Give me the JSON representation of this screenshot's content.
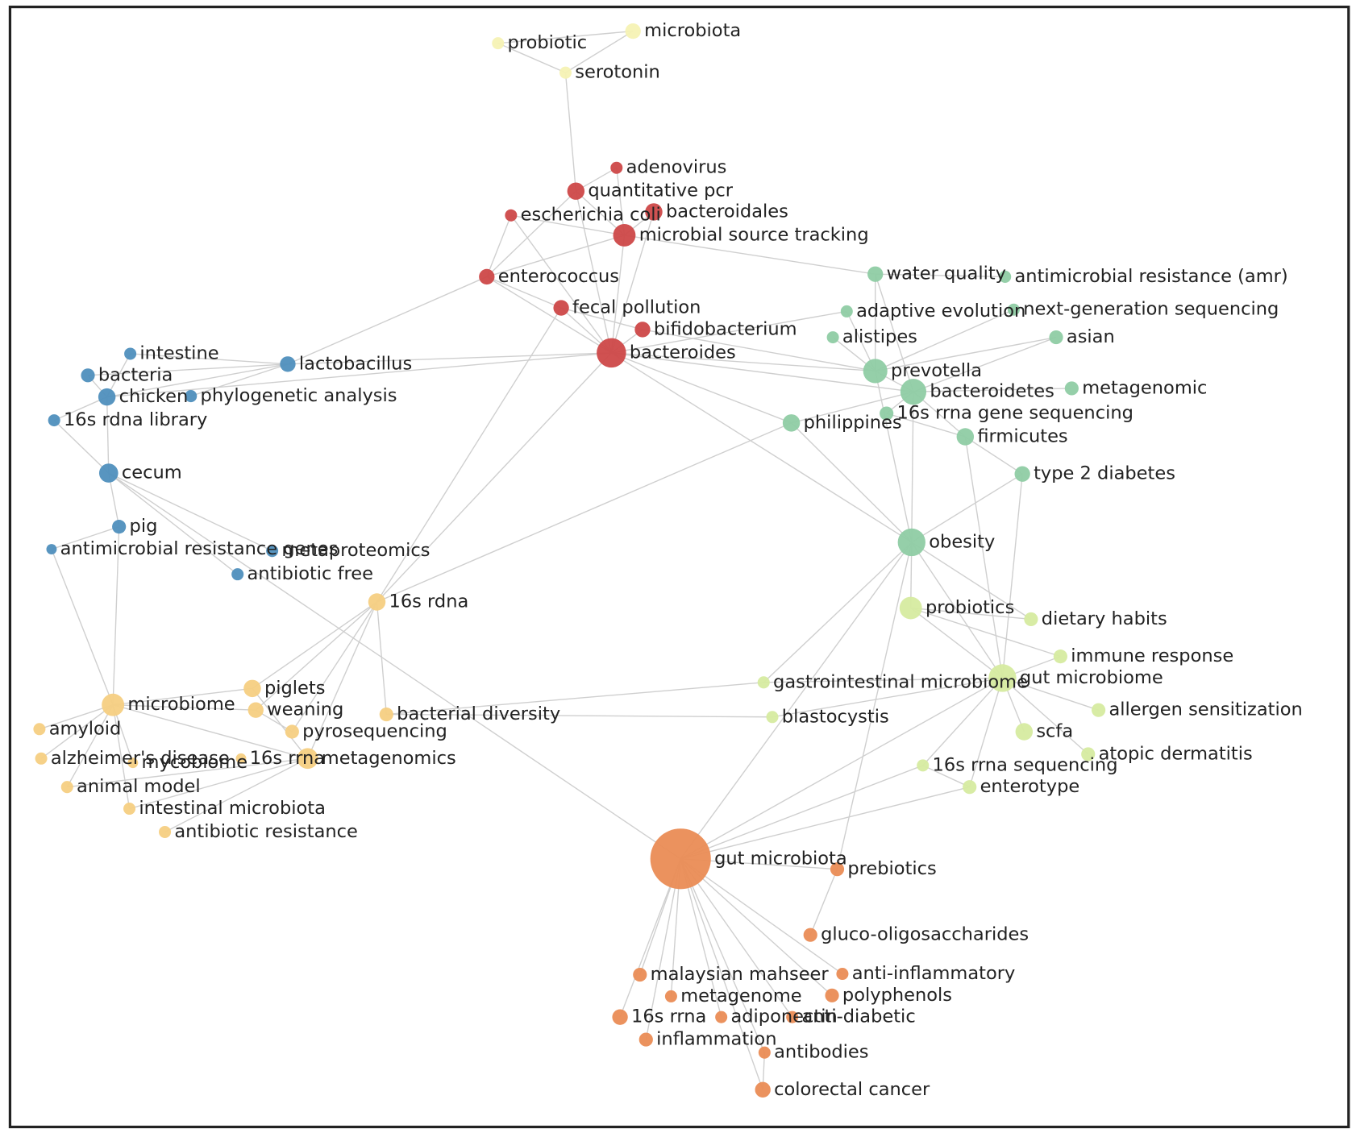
{
  "groups": [
    {
      "color": "#f6f2b4"
    },
    {
      "color": "#cd4848"
    },
    {
      "color": "#4f8fbd"
    },
    {
      "color": "#f6cf82"
    },
    {
      "color": "#8fcca4"
    },
    {
      "color": "#d6eba0"
    },
    {
      "color": "#ea8c55"
    }
  ],
  "nodes": [
    {
      "label": "probiotic",
      "group": 0
    },
    {
      "label": "microbiota",
      "group": 0
    },
    {
      "label": "serotonin",
      "group": 0
    },
    {
      "label": "adenovirus",
      "group": 1
    },
    {
      "label": "quantitative pcr",
      "group": 1
    },
    {
      "label": "escherichia coli",
      "group": 1
    },
    {
      "label": "bacteroidales",
      "group": 1
    },
    {
      "label": "microbial source tracking",
      "group": 1
    },
    {
      "label": "enterococcus",
      "group": 1
    },
    {
      "label": "fecal pollution",
      "group": 1
    },
    {
      "label": "bifidobacterium",
      "group": 1
    },
    {
      "label": "bacteroides",
      "group": 1
    },
    {
      "label": "intestine",
      "group": 2
    },
    {
      "label": "lactobacillus",
      "group": 2
    },
    {
      "label": "bacteria",
      "group": 2
    },
    {
      "label": "chicken",
      "group": 2
    },
    {
      "label": "phylogenetic analysis",
      "group": 2
    },
    {
      "label": "16s rdna library",
      "group": 2
    },
    {
      "label": "cecum",
      "group": 2
    },
    {
      "label": "pig",
      "group": 2
    },
    {
      "label": "antimicrobial resistance genes",
      "group": 2
    },
    {
      "label": "metaproteomics",
      "group": 2
    },
    {
      "label": "antibiotic free",
      "group": 2
    },
    {
      "label": "16s rdna",
      "group": 3
    },
    {
      "label": "microbiome",
      "group": 3
    },
    {
      "label": "piglets",
      "group": 3
    },
    {
      "label": "weaning",
      "group": 3
    },
    {
      "label": "bacterial diversity",
      "group": 3
    },
    {
      "label": "amyloid",
      "group": 3
    },
    {
      "label": "pyrosequencing",
      "group": 3
    },
    {
      "label": "alzheimer's disease",
      "group": 3
    },
    {
      "label": "mycobiome",
      "group": 3
    },
    {
      "label": "16s rrna",
      "group": 3
    },
    {
      "label": "metagenomics",
      "group": 3
    },
    {
      "label": "animal model",
      "group": 3
    },
    {
      "label": "intestinal microbiota",
      "group": 3
    },
    {
      "label": "antibiotic resistance",
      "group": 3
    },
    {
      "label": "water quality",
      "group": 4
    },
    {
      "label": "antimicrobial resistance (amr)",
      "group": 4
    },
    {
      "label": "adaptive evolution",
      "group": 4
    },
    {
      "label": "next-generation sequencing",
      "group": 4
    },
    {
      "label": "alistipes",
      "group": 4
    },
    {
      "label": "asian",
      "group": 4
    },
    {
      "label": "prevotella",
      "group": 4
    },
    {
      "label": "bacteroidetes",
      "group": 4
    },
    {
      "label": "metagenomic",
      "group": 4
    },
    {
      "label": "16s rrna gene sequencing",
      "group": 4
    },
    {
      "label": "philippines",
      "group": 4
    },
    {
      "label": "firmicutes",
      "group": 4
    },
    {
      "label": "type 2 diabetes",
      "group": 4
    },
    {
      "label": "obesity",
      "group": 4
    },
    {
      "label": "probiotics",
      "group": 5
    },
    {
      "label": "dietary habits",
      "group": 5
    },
    {
      "label": "immune response",
      "group": 5
    },
    {
      "label": "gastrointestinal microbiome",
      "group": 5
    },
    {
      "label": "gut microbiome",
      "group": 5
    },
    {
      "label": "allergen sensitization",
      "group": 5
    },
    {
      "label": "blastocystis",
      "group": 5
    },
    {
      "label": "scfa",
      "group": 5
    },
    {
      "label": "atopic dermatitis",
      "group": 5
    },
    {
      "label": "16s rrna sequencing",
      "group": 5
    },
    {
      "label": "enterotype",
      "group": 5
    },
    {
      "label": "gut microbiota",
      "group": 6
    },
    {
      "label": "prebiotics",
      "group": 6
    },
    {
      "label": "gluco-oligosaccharides",
      "group": 6
    },
    {
      "label": "malaysian mahseer",
      "group": 6
    },
    {
      "label": "anti-inflammatory",
      "group": 6
    },
    {
      "label": "metagenome",
      "group": 6
    },
    {
      "label": "polyphenols",
      "group": 6
    },
    {
      "label": "16s rrna",
      "group": 6
    },
    {
      "label": "adiponectin",
      "group": 6
    },
    {
      "label": "anti-diabetic",
      "group": 6
    },
    {
      "label": "inflammation",
      "group": 6
    },
    {
      "label": "antibodies",
      "group": 6
    },
    {
      "label": "colorectal cancer",
      "group": 6
    }
  ]
}
